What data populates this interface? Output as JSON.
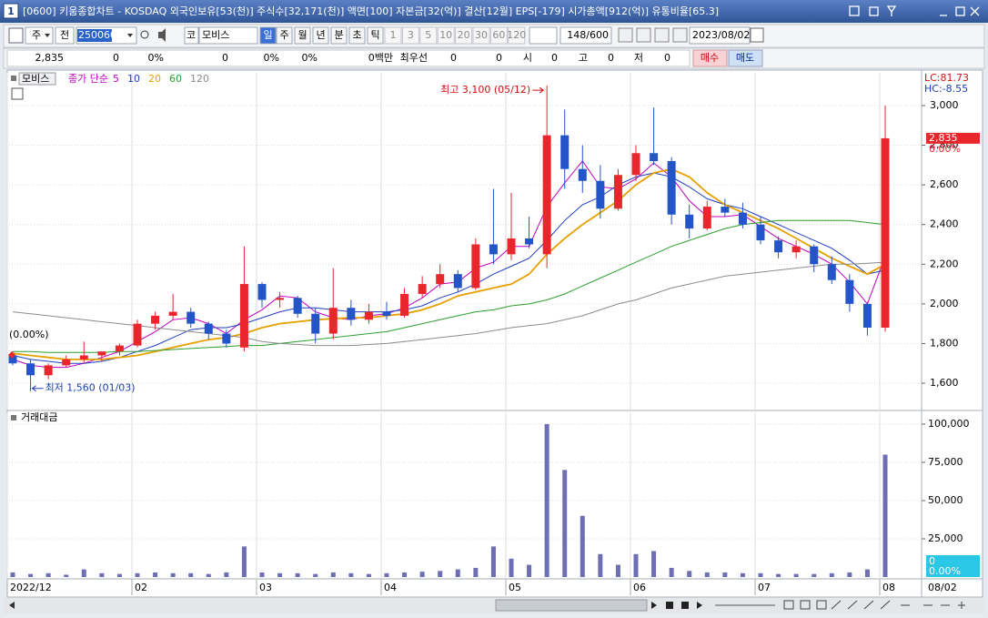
{
  "window": {
    "number": "1",
    "title": "[0600] 키움종합차트 - KOSDAQ 외국인보유[53(천)] 주식수[32,171(천)] 액면[100] 자본금[32(억)] 결산[12월] EPS[-179] 시가총액[912(억)] 유통비율[65.3]"
  },
  "toolbar": {
    "period": "주",
    "range": "전",
    "code": "250060",
    "market": "코",
    "name": "모비스",
    "intervals": [
      "일",
      "주",
      "월",
      "년",
      "분",
      "초",
      "틱"
    ],
    "minutes": [
      "1",
      "3",
      "5",
      "10",
      "20",
      "30",
      "60",
      "120"
    ],
    "count": "148/600",
    "date": "2023/08/02"
  },
  "quote_bar": {
    "cells": [
      "2,835",
      "0",
      "0%",
      "0",
      "0%",
      "0%",
      "0백만",
      "최우선",
      "0",
      "0",
      "시",
      "0",
      "고",
      "0",
      "저",
      "0"
    ],
    "buy": "매수",
    "sell": "매도"
  },
  "chart_data": [
    {
      "type": "candlestick",
      "name": "모비스",
      "method": "종가 단순",
      "open": [
        1740,
        1700,
        1640,
        1690,
        1720,
        1740,
        1760,
        1790,
        1900,
        1940,
        1960,
        1900,
        1850,
        1780,
        2100,
        2020,
        2030,
        1950,
        1850,
        1980,
        1920,
        1960,
        1940,
        2050,
        2100,
        2150,
        2080,
        2300,
        2250,
        2330,
        2250,
        2850,
        2680,
        2620,
        2480,
        2650,
        2760,
        2720,
        2450,
        2380,
        2490,
        2460,
        2400,
        2320,
        2260,
        2290,
        2200,
        2120,
        2000,
        1880
      ],
      "high": [
        1760,
        1720,
        1700,
        1740,
        1810,
        1760,
        1800,
        1920,
        1960,
        2050,
        1980,
        1910,
        1870,
        2290,
        2110,
        2060,
        2040,
        1980,
        2180,
        2020,
        2000,
        2010,
        2080,
        2140,
        2200,
        2170,
        2330,
        2580,
        2560,
        2440,
        3100,
        2980,
        2800,
        2700,
        2680,
        2800,
        2990,
        2740,
        2500,
        2520,
        2530,
        2510,
        2440,
        2340,
        2320,
        2300,
        2240,
        2150,
        2010,
        3000
      ],
      "low": [
        1690,
        1560,
        1620,
        1680,
        1700,
        1710,
        1740,
        1780,
        1870,
        1920,
        1880,
        1820,
        1780,
        1760,
        1980,
        1980,
        1930,
        1800,
        1820,
        1890,
        1900,
        1920,
        1930,
        2030,
        2080,
        2060,
        2070,
        2200,
        2220,
        2280,
        2180,
        2580,
        2560,
        2430,
        2470,
        2620,
        2700,
        2400,
        2330,
        2370,
        2440,
        2380,
        2300,
        2230,
        2230,
        2160,
        2100,
        1960,
        1840,
        1860
      ],
      "close": [
        1700,
        1640,
        1690,
        1720,
        1740,
        1760,
        1790,
        1900,
        1940,
        1960,
        1900,
        1850,
        1800,
        2100,
        2020,
        2030,
        1950,
        1850,
        1980,
        1920,
        1960,
        1940,
        2050,
        2100,
        2150,
        2080,
        2300,
        2250,
        2330,
        2300,
        2850,
        2680,
        2620,
        2480,
        2650,
        2760,
        2720,
        2450,
        2380,
        2490,
        2460,
        2400,
        2320,
        2260,
        2290,
        2200,
        2120,
        2000,
        1880,
        2835
      ],
      "up_color": "#e8262c",
      "down_color": "#2355c8",
      "series": [
        {
          "name": "5",
          "color": "#c000c0",
          "values": [
            1720,
            1690,
            1680,
            1680,
            1700,
            1730,
            1760,
            1810,
            1860,
            1920,
            1930,
            1900,
            1850,
            1920,
            1970,
            2040,
            2030,
            1960,
            1930,
            1920,
            1940,
            1950,
            1980,
            2030,
            2100,
            2110,
            2180,
            2210,
            2290,
            2290,
            2490,
            2610,
            2720,
            2590,
            2580,
            2630,
            2710,
            2640,
            2520,
            2440,
            2440,
            2450,
            2390,
            2330,
            2290,
            2250,
            2200,
            2110,
            2000,
            2240
          ]
        },
        {
          "name": "10",
          "color": "#1f3fbf",
          "values": [
            1740,
            1720,
            1710,
            1700,
            1700,
            1710,
            1730,
            1760,
            1790,
            1830,
            1870,
            1880,
            1880,
            1900,
            1930,
            1960,
            1980,
            1980,
            1970,
            1960,
            1960,
            1960,
            1970,
            1990,
            2030,
            2060,
            2100,
            2150,
            2190,
            2230,
            2320,
            2420,
            2500,
            2540,
            2600,
            2640,
            2660,
            2640,
            2590,
            2530,
            2500,
            2480,
            2440,
            2400,
            2360,
            2320,
            2280,
            2220,
            2150,
            2170
          ]
        },
        {
          "name": "20",
          "color": "#e6a000",
          "values": [
            1750,
            1740,
            1730,
            1720,
            1720,
            1720,
            1730,
            1740,
            1760,
            1780,
            1800,
            1820,
            1830,
            1850,
            1880,
            1900,
            1910,
            1920,
            1925,
            1930,
            1930,
            1940,
            1950,
            1970,
            2000,
            2040,
            2060,
            2080,
            2100,
            2150,
            2250,
            2330,
            2400,
            2460,
            2520,
            2600,
            2660,
            2680,
            2640,
            2560,
            2500,
            2460,
            2420,
            2380,
            2330,
            2280,
            2230,
            2190,
            2150,
            2200
          ]
        },
        {
          "name": "60",
          "color": "#2e9e2e",
          "values": [
            1760,
            1760,
            1755,
            1755,
            1755,
            1755,
            1760,
            1760,
            1765,
            1770,
            1775,
            1780,
            1785,
            1790,
            1790,
            1800,
            1810,
            1820,
            1830,
            1840,
            1850,
            1860,
            1880,
            1900,
            1920,
            1940,
            1960,
            1970,
            1990,
            2000,
            2020,
            2050,
            2090,
            2130,
            2170,
            2210,
            2250,
            2290,
            2320,
            2350,
            2380,
            2400,
            2410,
            2420,
            2420,
            2420,
            2420,
            2420,
            2410,
            2400
          ]
        },
        {
          "name": "120",
          "color": "#8c8c8c",
          "values": [
            1960,
            1950,
            1940,
            1930,
            1920,
            1910,
            1900,
            1890,
            1880,
            1870,
            1860,
            1850,
            1840,
            1830,
            1810,
            1800,
            1795,
            1790,
            1790,
            1790,
            1795,
            1800,
            1810,
            1820,
            1830,
            1840,
            1850,
            1865,
            1880,
            1890,
            1900,
            1920,
            1940,
            1970,
            2000,
            2020,
            2050,
            2080,
            2100,
            2120,
            2140,
            2150,
            2160,
            2170,
            2180,
            2190,
            2200,
            2200,
            2205,
            2210
          ]
        }
      ],
      "ylim": [
        1467,
        3165
      ],
      "yticks": [
        {
          "value": 1600,
          "label": "1,600"
        },
        {
          "value": 1800,
          "label": "1,800"
        },
        {
          "value": 2000,
          "label": "2,000"
        },
        {
          "value": 2200,
          "label": "2,200"
        },
        {
          "value": 2400,
          "label": "2,400"
        },
        {
          "value": 2600,
          "label": "2,600"
        },
        {
          "value": 2800,
          "label": "2,800"
        },
        {
          "value": 3000,
          "label": "3,000"
        }
      ],
      "grid": true,
      "annotations": {
        "high": "최고 3,100 (05/12)",
        "low": "최저 1,560 (01/03)",
        "start": "(0.00%)",
        "lc": "LC:81.73",
        "hc": "HC:-8.55",
        "last_price": "2,835",
        "last_change": "0.00%"
      }
    },
    {
      "type": "bar",
      "title": "거래대금",
      "categories": [
        "2022/12",
        null,
        null,
        null,
        null,
        null,
        null,
        "02",
        null,
        null,
        null,
        null,
        null,
        null,
        "03",
        null,
        null,
        null,
        null,
        null,
        null,
        "04",
        null,
        null,
        null,
        null,
        null,
        null,
        "05",
        null,
        null,
        null,
        null,
        null,
        null,
        "06",
        null,
        null,
        null,
        null,
        null,
        null,
        "07",
        null,
        null,
        null,
        null,
        null,
        null,
        "08"
      ],
      "end_label": "08/02",
      "values": [
        3000,
        2000,
        2500,
        1500,
        5000,
        2500,
        2000,
        2500,
        3000,
        2500,
        2500,
        2000,
        3000,
        20000,
        3000,
        2500,
        2500,
        2000,
        3000,
        2500,
        2000,
        2500,
        3000,
        3500,
        4000,
        5000,
        6000,
        20000,
        12000,
        8000,
        100000,
        70000,
        40000,
        15000,
        8000,
        15000,
        17000,
        6000,
        4000,
        3000,
        3000,
        2500,
        2500,
        2000,
        2000,
        2000,
        2500,
        3000,
        5000,
        80000
      ],
      "color": "#6e6eb4",
      "ylim": [
        0,
        106500
      ],
      "yticks": [
        {
          "value": 25000,
          "label": "25,000"
        },
        {
          "value": 50000,
          "label": "50,000"
        },
        {
          "value": 75000,
          "label": "75,000"
        },
        {
          "value": 100000,
          "label": "100,000"
        }
      ],
      "grid": true,
      "last_value": "0",
      "last_change": "0.00%"
    }
  ]
}
